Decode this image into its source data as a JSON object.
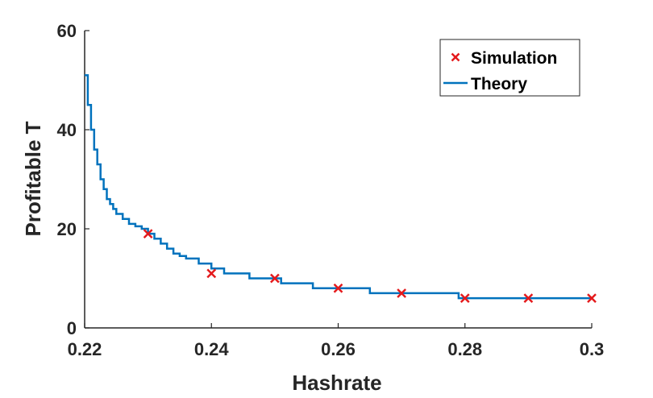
{
  "colors": {
    "theory_line": "#0072BD",
    "simulation_marker": "#E41A1C",
    "axis": "#262626",
    "background": "#FFFFFF"
  },
  "chart_data": {
    "type": "line",
    "title": "",
    "xlabel": "Hashrate",
    "ylabel": "Profitable T",
    "xlim": [
      0.22,
      0.3
    ],
    "ylim": [
      0,
      60
    ],
    "x_ticks": [
      0.22,
      0.24,
      0.26,
      0.28,
      0.3
    ],
    "x_tick_labels": [
      "0.22",
      "0.24",
      "0.26",
      "0.28",
      "0.3"
    ],
    "y_ticks": [
      0,
      20,
      40,
      60
    ],
    "y_tick_labels": [
      "0",
      "20",
      "40",
      "60"
    ],
    "grid": false,
    "legend_position": "top-right",
    "series": [
      {
        "name": "Simulation",
        "style": "marker-x",
        "x": [
          0.23,
          0.24,
          0.25,
          0.26,
          0.27,
          0.28,
          0.29,
          0.3
        ],
        "y": [
          19,
          11,
          10,
          8,
          7,
          6,
          6,
          6
        ]
      },
      {
        "name": "Theory",
        "style": "line",
        "x": [
          0.22,
          0.2205,
          0.221,
          0.2215,
          0.222,
          0.2225,
          0.223,
          0.2235,
          0.224,
          0.2245,
          0.225,
          0.226,
          0.227,
          0.228,
          0.229,
          0.23,
          0.231,
          0.232,
          0.233,
          0.234,
          0.235,
          0.236,
          0.238,
          0.24,
          0.242,
          0.246,
          0.251,
          0.256,
          0.265,
          0.279,
          0.28,
          0.3
        ],
        "y": [
          51,
          45,
          40,
          36,
          33,
          30,
          28,
          26,
          25,
          24,
          23,
          22,
          21,
          20.5,
          20,
          19,
          18,
          17,
          16,
          15,
          14.5,
          14,
          13,
          12,
          11,
          10,
          9,
          8,
          7,
          6,
          6,
          6
        ]
      }
    ]
  }
}
